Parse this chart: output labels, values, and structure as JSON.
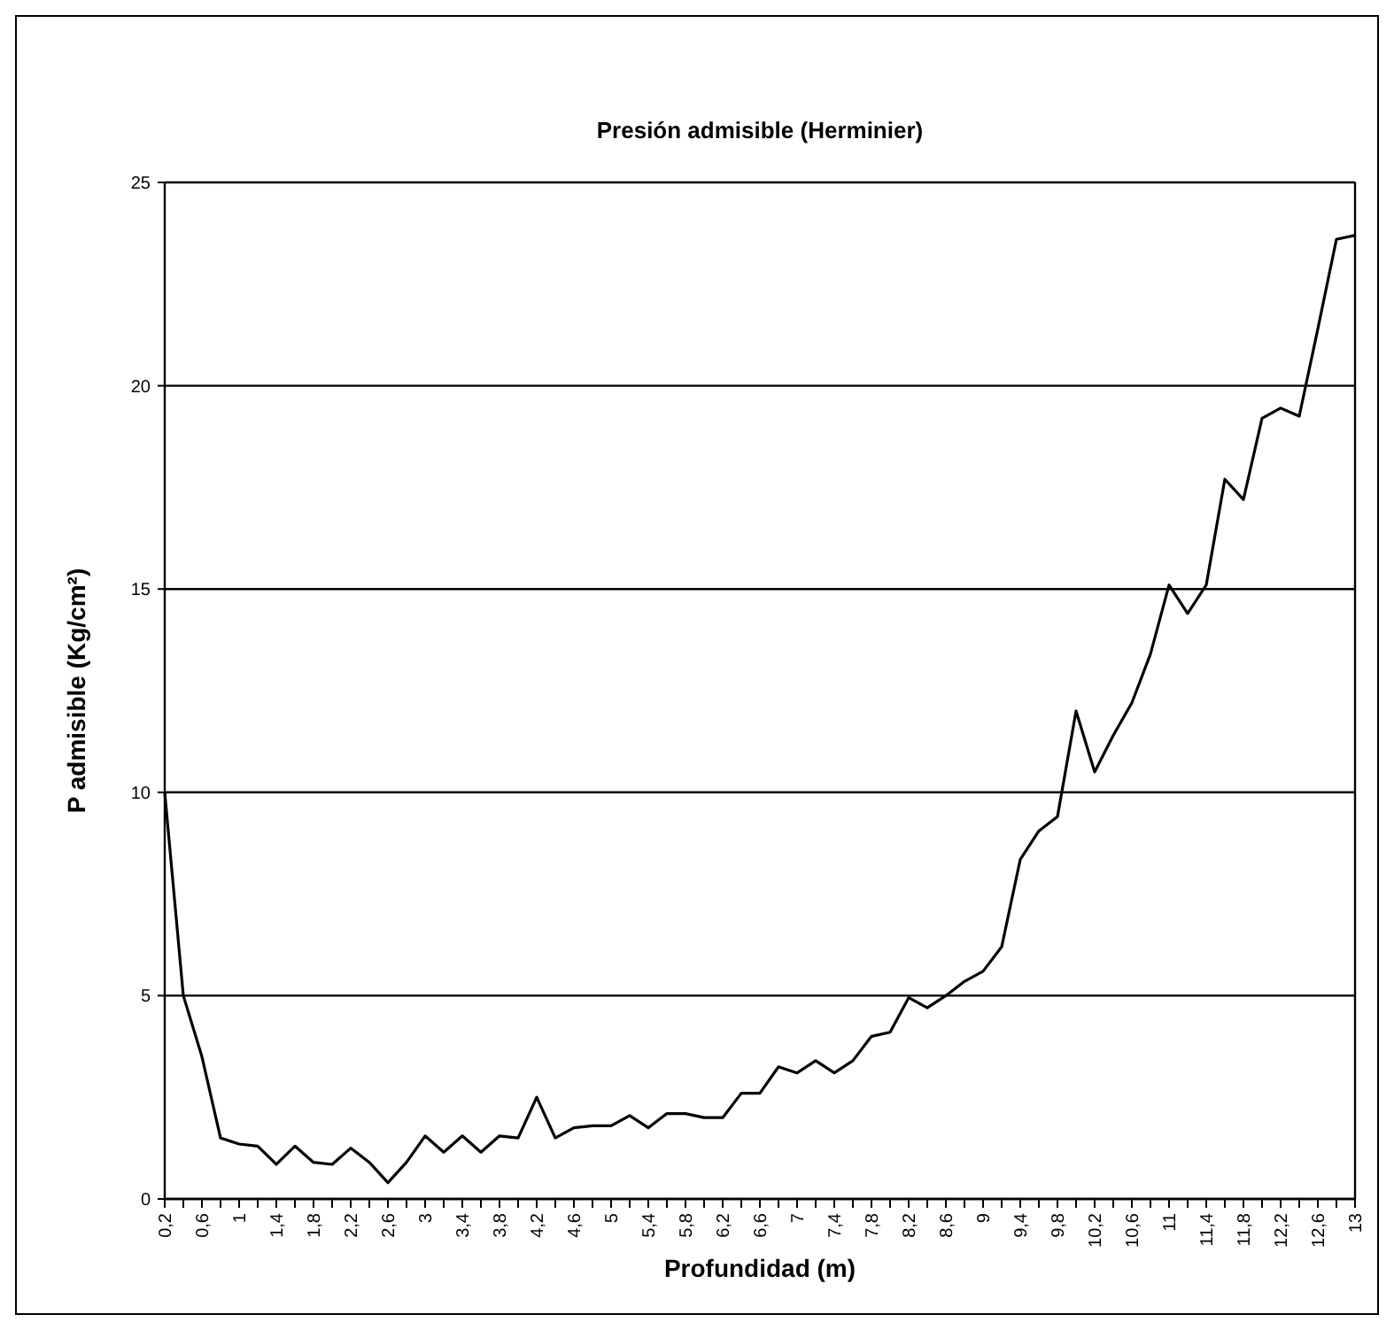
{
  "chart_data": {
    "type": "line",
    "title": "Presión admisible (Herminier)",
    "xlabel": "Profundidad (m)",
    "ylabel": "P admisible (Kg/cm²)",
    "categories": [
      "0,2",
      null,
      "0,6",
      null,
      "1",
      null,
      "1,4",
      null,
      "1,8",
      null,
      "2,2",
      null,
      "2,6",
      null,
      "3",
      null,
      "3,4",
      null,
      "3,8",
      null,
      "4,2",
      null,
      "4,6",
      null,
      "5",
      null,
      "5,4",
      null,
      "5,8",
      null,
      "6,2",
      null,
      "6,6",
      null,
      "7",
      null,
      "7,4",
      null,
      "7,8",
      null,
      "8,2",
      null,
      "8,6",
      null,
      "9",
      null,
      "9,4",
      null,
      "9,8",
      null,
      "10,2",
      null,
      "10,6",
      null,
      "11",
      null,
      "11,4",
      null,
      "11,8",
      null,
      "12,2",
      null,
      "12,6",
      null,
      "13"
    ],
    "series": [
      {
        "color": "#000000",
        "values": [
          10.0,
          5.0,
          3.5,
          1.5,
          1.35,
          1.3,
          0.85,
          1.3,
          0.9,
          0.85,
          1.25,
          0.9,
          0.4,
          0.9,
          1.55,
          1.15,
          1.55,
          1.15,
          1.55,
          1.5,
          2.5,
          1.5,
          1.75,
          1.8,
          1.8,
          2.05,
          1.75,
          2.1,
          2.1,
          2.0,
          2.0,
          2.6,
          2.6,
          3.25,
          3.1,
          3.4,
          3.1,
          3.4,
          4.0,
          4.1,
          4.95,
          4.7,
          5.0,
          5.35,
          5.6,
          6.2,
          8.35,
          9.05,
          9.4,
          12.0,
          10.5,
          11.4,
          12.2,
          13.4,
          15.1,
          14.4,
          15.1,
          17.7,
          17.2,
          19.2,
          19.45,
          19.25,
          21.4,
          23.6,
          23.7
        ]
      }
    ],
    "ylim": [
      0,
      25
    ],
    "yticks": [
      0,
      5,
      10,
      15,
      20,
      25
    ],
    "grid": "y",
    "marker": "none",
    "line_style": "solid"
  }
}
